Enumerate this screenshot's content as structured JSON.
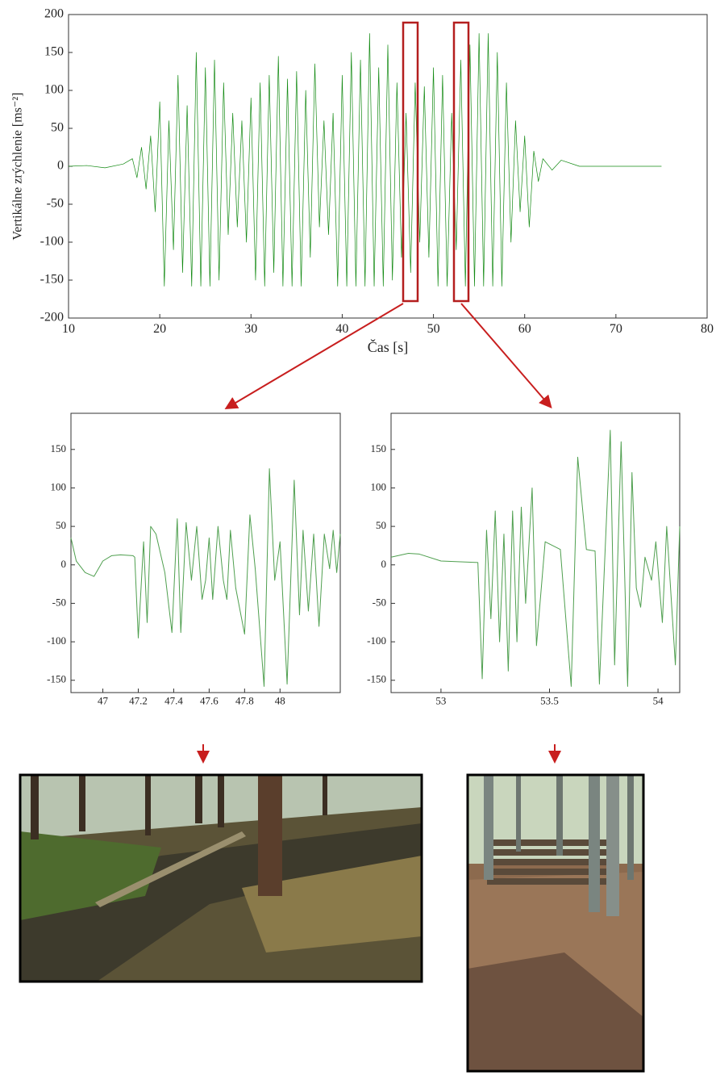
{
  "chart_data": [
    {
      "type": "line",
      "xlabel": "Čas [s]",
      "ylabel": "Vertikálne zrýchlenie [ms⁻²]",
      "color": "#138a13",
      "xlim": [
        10,
        80
      ],
      "ylim": [
        -200,
        200
      ],
      "xticks": [
        10,
        20,
        30,
        40,
        50,
        60,
        70,
        80
      ],
      "yticks": [
        -200,
        -150,
        -100,
        -50,
        0,
        50,
        100,
        150,
        200
      ],
      "x": [
        10,
        12,
        14,
        16,
        17,
        17.5,
        18,
        18.5,
        19,
        19.5,
        20,
        20.5,
        21,
        21.5,
        22,
        22.5,
        23,
        23.5,
        24,
        24.5,
        25,
        25.5,
        26,
        26.5,
        27,
        27.5,
        28,
        28.5,
        29,
        29.5,
        30,
        30.5,
        31,
        31.5,
        32,
        32.5,
        33,
        33.5,
        34,
        34.5,
        35,
        35.5,
        36,
        36.5,
        37,
        37.5,
        38,
        38.5,
        39,
        39.5,
        40,
        40.5,
        41,
        41.5,
        42,
        42.5,
        43,
        43.5,
        44,
        44.5,
        45,
        45.5,
        46,
        46.5,
        47,
        47.5,
        48,
        48.5,
        49,
        49.5,
        50,
        50.5,
        51,
        51.5,
        52,
        52.5,
        53,
        53.5,
        54,
        54.5,
        55,
        55.5,
        56,
        56.5,
        57,
        57.5,
        58,
        58.5,
        59,
        59.5,
        60,
        60.5,
        61,
        61.5,
        62,
        63,
        64,
        66,
        70,
        75
      ],
      "values": [
        0,
        1,
        -2,
        3,
        10,
        -15,
        25,
        -30,
        40,
        -60,
        85,
        -158,
        60,
        -110,
        120,
        -140,
        80,
        -158,
        150,
        -158,
        130,
        -158,
        140,
        -150,
        110,
        -90,
        70,
        -80,
        60,
        -100,
        90,
        -150,
        110,
        -158,
        120,
        -140,
        145,
        -158,
        115,
        -158,
        125,
        -158,
        100,
        -120,
        135,
        -80,
        60,
        -90,
        70,
        -158,
        120,
        -158,
        150,
        -158,
        140,
        -158,
        175,
        -158,
        130,
        -158,
        160,
        -150,
        110,
        -120,
        70,
        -140,
        110,
        -100,
        105,
        -120,
        130,
        -158,
        120,
        -158,
        70,
        -110,
        140,
        -158,
        160,
        -158,
        175,
        -158,
        175,
        -158,
        150,
        -158,
        110,
        -100,
        60,
        -60,
        40,
        -80,
        20,
        -20,
        10,
        -5,
        8,
        0,
        0,
        0
      ]
    },
    {
      "type": "line",
      "color": "#4f9f4f",
      "xlim": [
        46.82,
        48.34
      ],
      "ylim": [
        -166,
        197
      ],
      "xticks": [
        47,
        47.2,
        47.4,
        47.6,
        47.8,
        48
      ],
      "yticks": [
        -150,
        -100,
        -50,
        0,
        50,
        100,
        150
      ],
      "x": [
        46.82,
        46.85,
        46.9,
        46.95,
        47.0,
        47.05,
        47.1,
        47.17,
        47.18,
        47.2,
        47.23,
        47.25,
        47.27,
        47.3,
        47.35,
        47.39,
        47.42,
        47.44,
        47.47,
        47.5,
        47.53,
        47.56,
        47.58,
        47.6,
        47.62,
        47.65,
        47.68,
        47.7,
        47.72,
        47.75,
        47.8,
        47.83,
        47.86,
        47.91,
        47.94,
        47.97,
        48.0,
        48.04,
        48.08,
        48.11,
        48.13,
        48.16,
        48.19,
        48.22,
        48.25,
        48.28,
        48.3,
        48.32,
        48.34
      ],
      "values": [
        35,
        5,
        -10,
        -15,
        5,
        12,
        13,
        12,
        10,
        -95,
        30,
        -75,
        50,
        40,
        -10,
        -88,
        60,
        -88,
        55,
        -20,
        50,
        -45,
        -20,
        35,
        -45,
        50,
        -20,
        -45,
        45,
        -30,
        -90,
        65,
        -5,
        -158,
        125,
        -20,
        30,
        -155,
        110,
        -65,
        45,
        -60,
        40,
        -80,
        40,
        -5,
        45,
        -10,
        40
      ]
    },
    {
      "type": "line",
      "color": "#4f9f4f",
      "xlim": [
        52.77,
        54.1
      ],
      "ylim": [
        -166,
        197
      ],
      "xticks": [
        53,
        53.5,
        54
      ],
      "yticks": [
        -150,
        -100,
        -50,
        0,
        50,
        100,
        150
      ],
      "x": [
        52.77,
        52.85,
        52.9,
        53.0,
        53.17,
        53.19,
        53.21,
        53.23,
        53.25,
        53.27,
        53.29,
        53.31,
        53.33,
        53.35,
        53.37,
        53.39,
        53.42,
        53.44,
        53.48,
        53.55,
        53.6,
        53.63,
        53.67,
        53.71,
        53.73,
        53.78,
        53.8,
        53.83,
        53.86,
        53.88,
        53.9,
        53.92,
        53.94,
        53.97,
        53.99,
        54.02,
        54.04,
        54.08,
        54.1
      ],
      "values": [
        10,
        15,
        14,
        5,
        3,
        -148,
        45,
        -70,
        70,
        -100,
        40,
        -138,
        70,
        -100,
        75,
        -50,
        100,
        -105,
        30,
        20,
        -158,
        140,
        20,
        18,
        -155,
        175,
        -130,
        160,
        -158,
        120,
        -30,
        -55,
        10,
        -20,
        30,
        -75,
        50,
        -130,
        50
      ]
    }
  ]
}
